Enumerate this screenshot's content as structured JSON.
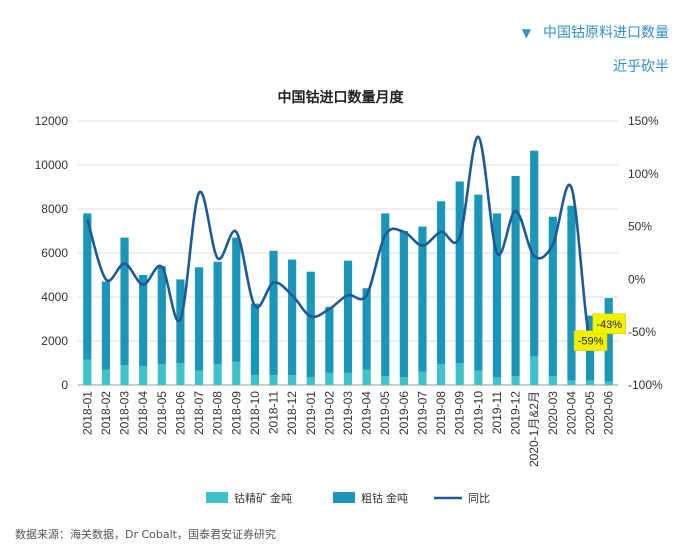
{
  "header": {
    "marker": "▼",
    "subtitle": "中国钴原料进口数量",
    "note": "近乎砍半"
  },
  "source_text": "数据来源：海关数据，Dr Cobalt，国泰君安证券研究",
  "colors": {
    "ore": "#3fc2c9",
    "crude": "#1b96b8",
    "yoy": "#1f5a96",
    "callout_bg": "#f2f200",
    "header_text": "#2f8fc9"
  },
  "chart_data": {
    "type": "bar",
    "title": "中国钴进口数量月度",
    "categories": [
      "2018-01",
      "2018-02",
      "2018-03",
      "2018-04",
      "2018-05",
      "2018-06",
      "2018-07",
      "2018-08",
      "2018-09",
      "2018-10",
      "2018-11",
      "2018-12",
      "2019-01",
      "2019-02",
      "2019-03",
      "2019-04",
      "2019-05",
      "2019-06",
      "2019-07",
      "2019-08",
      "2019-09",
      "2019-10",
      "2019-11",
      "2019-12",
      "2020-1月&2月",
      "2020-03",
      "2020-04",
      "2020-05",
      "2020-06"
    ],
    "series": [
      {
        "name": "钴精矿 金吨",
        "type": "bar",
        "axis": "left",
        "stack": true,
        "values": [
          1150,
          700,
          900,
          850,
          950,
          1000,
          650,
          950,
          1050,
          450,
          450,
          450,
          350,
          550,
          550,
          700,
          400,
          350,
          600,
          950,
          1000,
          650,
          350,
          400,
          1300,
          400,
          200,
          200,
          150
        ]
      },
      {
        "name": "粗钴 金吨",
        "type": "bar",
        "axis": "left",
        "stack": true,
        "values": [
          6650,
          4000,
          5800,
          4150,
          4450,
          3800,
          4700,
          4650,
          5650,
          3250,
          5650,
          5250,
          4800,
          3000,
          5100,
          3700,
          7400,
          6650,
          6600,
          7400,
          8250,
          8000,
          7450,
          9100,
          9350,
          7250,
          7950,
          2950,
          3800
        ]
      },
      {
        "name": "同比",
        "type": "line",
        "axis": "right",
        "values": [
          57,
          0,
          15,
          -5,
          12,
          -38,
          82,
          20,
          45,
          -25,
          -3,
          -15,
          -35,
          -28,
          -15,
          -15,
          42,
          45,
          32,
          45,
          40,
          135,
          25,
          65,
          22,
          33,
          87,
          -59,
          -43
        ]
      }
    ],
    "yleft": {
      "range": [
        0,
        12000
      ],
      "ticks": [
        "0",
        "2000",
        "4000",
        "6000",
        "8000",
        "10000",
        "12000"
      ]
    },
    "yright": {
      "range": [
        -100,
        150
      ],
      "ticks": [
        "-100%",
        "-50%",
        "0%",
        "50%",
        "100%",
        "150%"
      ]
    },
    "annotations": [
      {
        "category": "2020-05",
        "text": "-59%"
      },
      {
        "category": "2020-06",
        "text": "-43%"
      }
    ],
    "legend_position": "bottom",
    "grid": true
  }
}
